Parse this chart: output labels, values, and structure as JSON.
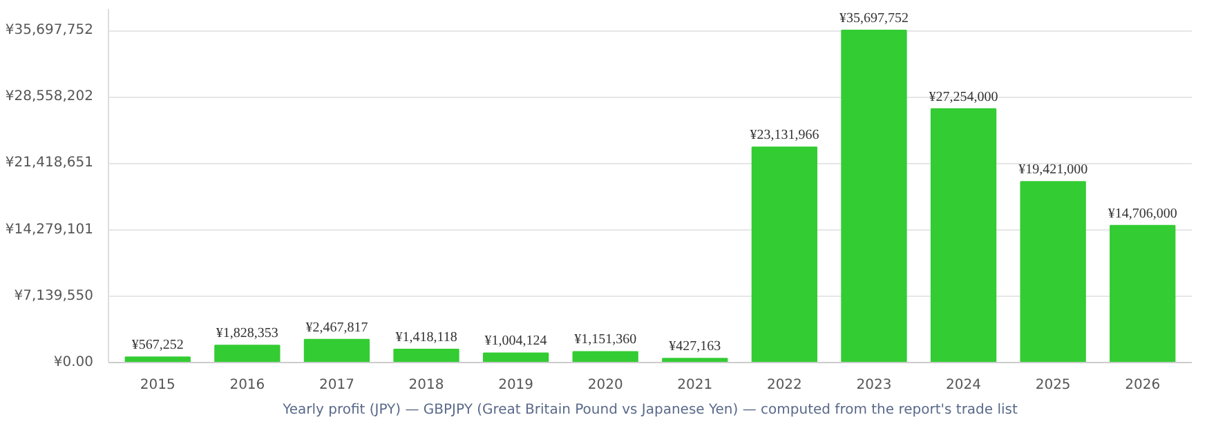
{
  "chart_data": {
    "type": "bar",
    "annotations": [
      "Yearly profit (JPY) — GBPJPY (Great Britain Pound vs Japanese Yen) — computed from the report's trade list"
    ],
    "categories": [
      "2015",
      "2016",
      "2017",
      "2018",
      "2019",
      "2020",
      "2021",
      "2022",
      "2023",
      "2024",
      "2025",
      "2026"
    ],
    "values": [
      567252,
      1828353,
      2467817,
      1418118,
      1004124,
      1151360,
      427163,
      23131966,
      35697752,
      27254000,
      19421000,
      14706000
    ],
    "value_labels": [
      "¥567,252",
      "¥1,828,353",
      "¥2,467,817",
      "¥1,418,118",
      "¥1,004,124",
      "¥1,151,360",
      "¥427,163",
      "¥23,131,966",
      "¥35,697,752",
      "¥27,254,000",
      "¥19,421,000",
      "¥14,706,000"
    ],
    "color": "#33cc33",
    "ylim": [
      0,
      38000000
    ],
    "yticks": [
      {
        "value": 0,
        "label": "¥0.00"
      },
      {
        "value": 7139550,
        "label": "¥7,139,550"
      },
      {
        "value": 14279101,
        "label": "¥14,279,101"
      },
      {
        "value": 21418651,
        "label": "¥21,418,651"
      },
      {
        "value": 28558202,
        "label": "¥28,558,202"
      },
      {
        "value": 35697752,
        "label": "¥35,697,752"
      }
    ],
    "grid": "y"
  }
}
